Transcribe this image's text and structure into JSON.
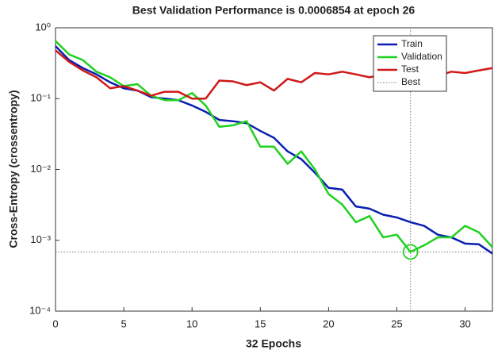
{
  "chart_data": {
    "type": "line",
    "title": "Best Validation Performance is 0.0006854 at epoch 26",
    "xlabel": "32 Epochs",
    "ylabel": "Cross-Entropy  (crossentropy)",
    "x": [
      0,
      1,
      2,
      3,
      4,
      5,
      6,
      7,
      8,
      9,
      10,
      11,
      12,
      13,
      14,
      15,
      16,
      17,
      18,
      19,
      20,
      21,
      22,
      23,
      24,
      25,
      26,
      27,
      28,
      29,
      30,
      31,
      32
    ],
    "series": [
      {
        "name": "Train",
        "color": "#0a1fb0",
        "values": [
          0.55,
          0.35,
          0.27,
          0.22,
          0.17,
          0.14,
          0.13,
          0.105,
          0.1,
          0.095,
          0.08,
          0.065,
          0.05,
          0.048,
          0.045,
          0.035,
          0.028,
          0.018,
          0.014,
          0.009,
          0.0055,
          0.0052,
          0.003,
          0.0028,
          0.0023,
          0.0021,
          0.0018,
          0.0016,
          0.0012,
          0.0011,
          0.0009,
          0.00088,
          0.00065
        ]
      },
      {
        "name": "Validation",
        "color": "#1fd11f",
        "values": [
          0.65,
          0.42,
          0.35,
          0.24,
          0.2,
          0.15,
          0.16,
          0.11,
          0.095,
          0.095,
          0.12,
          0.08,
          0.04,
          0.042,
          0.048,
          0.021,
          0.021,
          0.012,
          0.018,
          0.01,
          0.0045,
          0.0032,
          0.0018,
          0.0022,
          0.0011,
          0.0012,
          0.0006854,
          0.00085,
          0.0011,
          0.0011,
          0.0016,
          0.0013,
          0.0008
        ]
      },
      {
        "name": "Test",
        "color": "#d01818",
        "values": [
          0.48,
          0.33,
          0.25,
          0.2,
          0.14,
          0.15,
          0.13,
          0.11,
          0.125,
          0.125,
          0.1,
          0.1,
          0.18,
          0.175,
          0.155,
          0.17,
          0.13,
          0.19,
          0.17,
          0.23,
          0.22,
          0.24,
          0.22,
          0.2,
          0.22,
          0.2,
          0.23,
          0.22,
          0.21,
          0.24,
          0.23,
          0.25,
          0.27
        ]
      }
    ],
    "best": {
      "name": "Best",
      "x": 26,
      "y": 0.0006854,
      "color": "#1fd11f"
    },
    "xlim": [
      0,
      32
    ],
    "xticks": [
      0,
      5,
      10,
      15,
      20,
      25,
      30
    ],
    "ylim": [
      0.0001,
      1
    ],
    "yscale": "log",
    "yticks": [
      {
        "value": 0.0001,
        "label": "10⁻⁴"
      },
      {
        "value": 0.001,
        "label": "10⁻³"
      },
      {
        "value": 0.01,
        "label": "10⁻²"
      },
      {
        "value": 0.1,
        "label": "10⁻¹"
      },
      {
        "value": 1,
        "label": "10⁰"
      }
    ],
    "legend": "northeast",
    "grid": false
  }
}
